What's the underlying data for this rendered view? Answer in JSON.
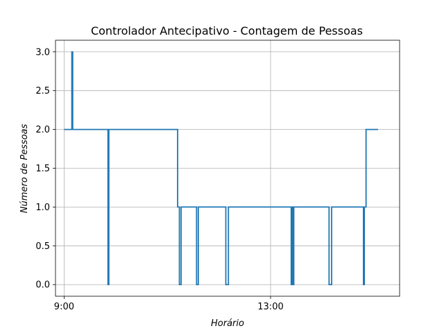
{
  "chart_data": {
    "type": "line",
    "title": "Controlador Antecipativo - Contagem de Pessoas",
    "xlabel": "Horário",
    "ylabel": "Número de Pessoas",
    "xlim": [
      "08:50",
      "15:30"
    ],
    "ylim": [
      -0.15,
      3.15
    ],
    "x_ticks": [
      {
        "value": "09:00",
        "label": "9:00"
      },
      {
        "value": "13:00",
        "label": "13:00"
      }
    ],
    "y_ticks": [
      0.0,
      0.5,
      1.0,
      1.5,
      2.0,
      2.5,
      3.0
    ],
    "y_tick_labels": [
      "0.0",
      "0.5",
      "1.0",
      "1.5",
      "2.0",
      "2.5",
      "3.0"
    ],
    "grid": true,
    "color": "#1f77b4",
    "series": [
      {
        "step": "post",
        "x": [
          "09:00",
          "09:09",
          "09:10",
          "09:51",
          "09:52",
          "11:12",
          "11:14",
          "11:16",
          "11:34",
          "11:36",
          "12:08",
          "12:11",
          "12:26",
          "13:24",
          "13:25",
          "13:26",
          "13:27",
          "14:08",
          "14:11",
          "14:48",
          "14:49",
          "14:51",
          "15:05"
        ],
        "values": [
          2,
          3,
          2,
          0,
          2,
          1,
          0,
          1,
          0,
          1,
          0,
          1,
          1,
          0,
          1,
          0,
          1,
          0,
          1,
          0,
          1,
          2,
          2
        ]
      }
    ]
  }
}
